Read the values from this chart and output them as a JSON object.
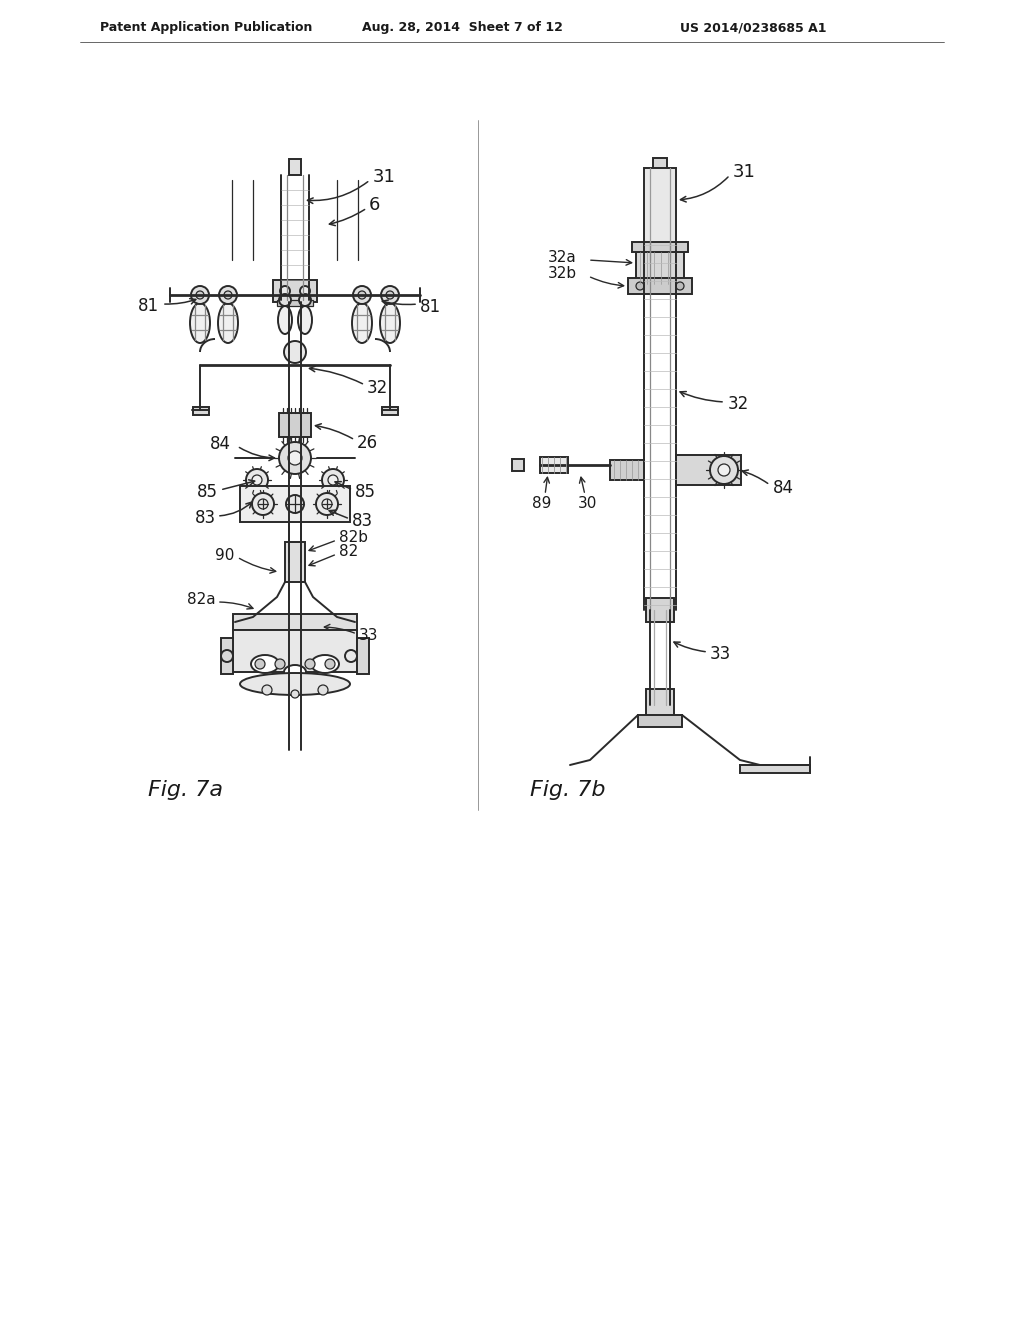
{
  "bg_color": "#ffffff",
  "header_text": "Patent Application Publication",
  "header_date": "Aug. 28, 2014  Sheet 7 of 12",
  "header_patent": "US 2014/0238685 A1",
  "fig_label_a": "Fig. 7a",
  "fig_label_b": "Fig. 7b",
  "line_color": "#2a2a2a",
  "text_color": "#1a1a1a",
  "lw_main": 1.4,
  "lw_thin": 0.9,
  "lw_thick": 2.0
}
